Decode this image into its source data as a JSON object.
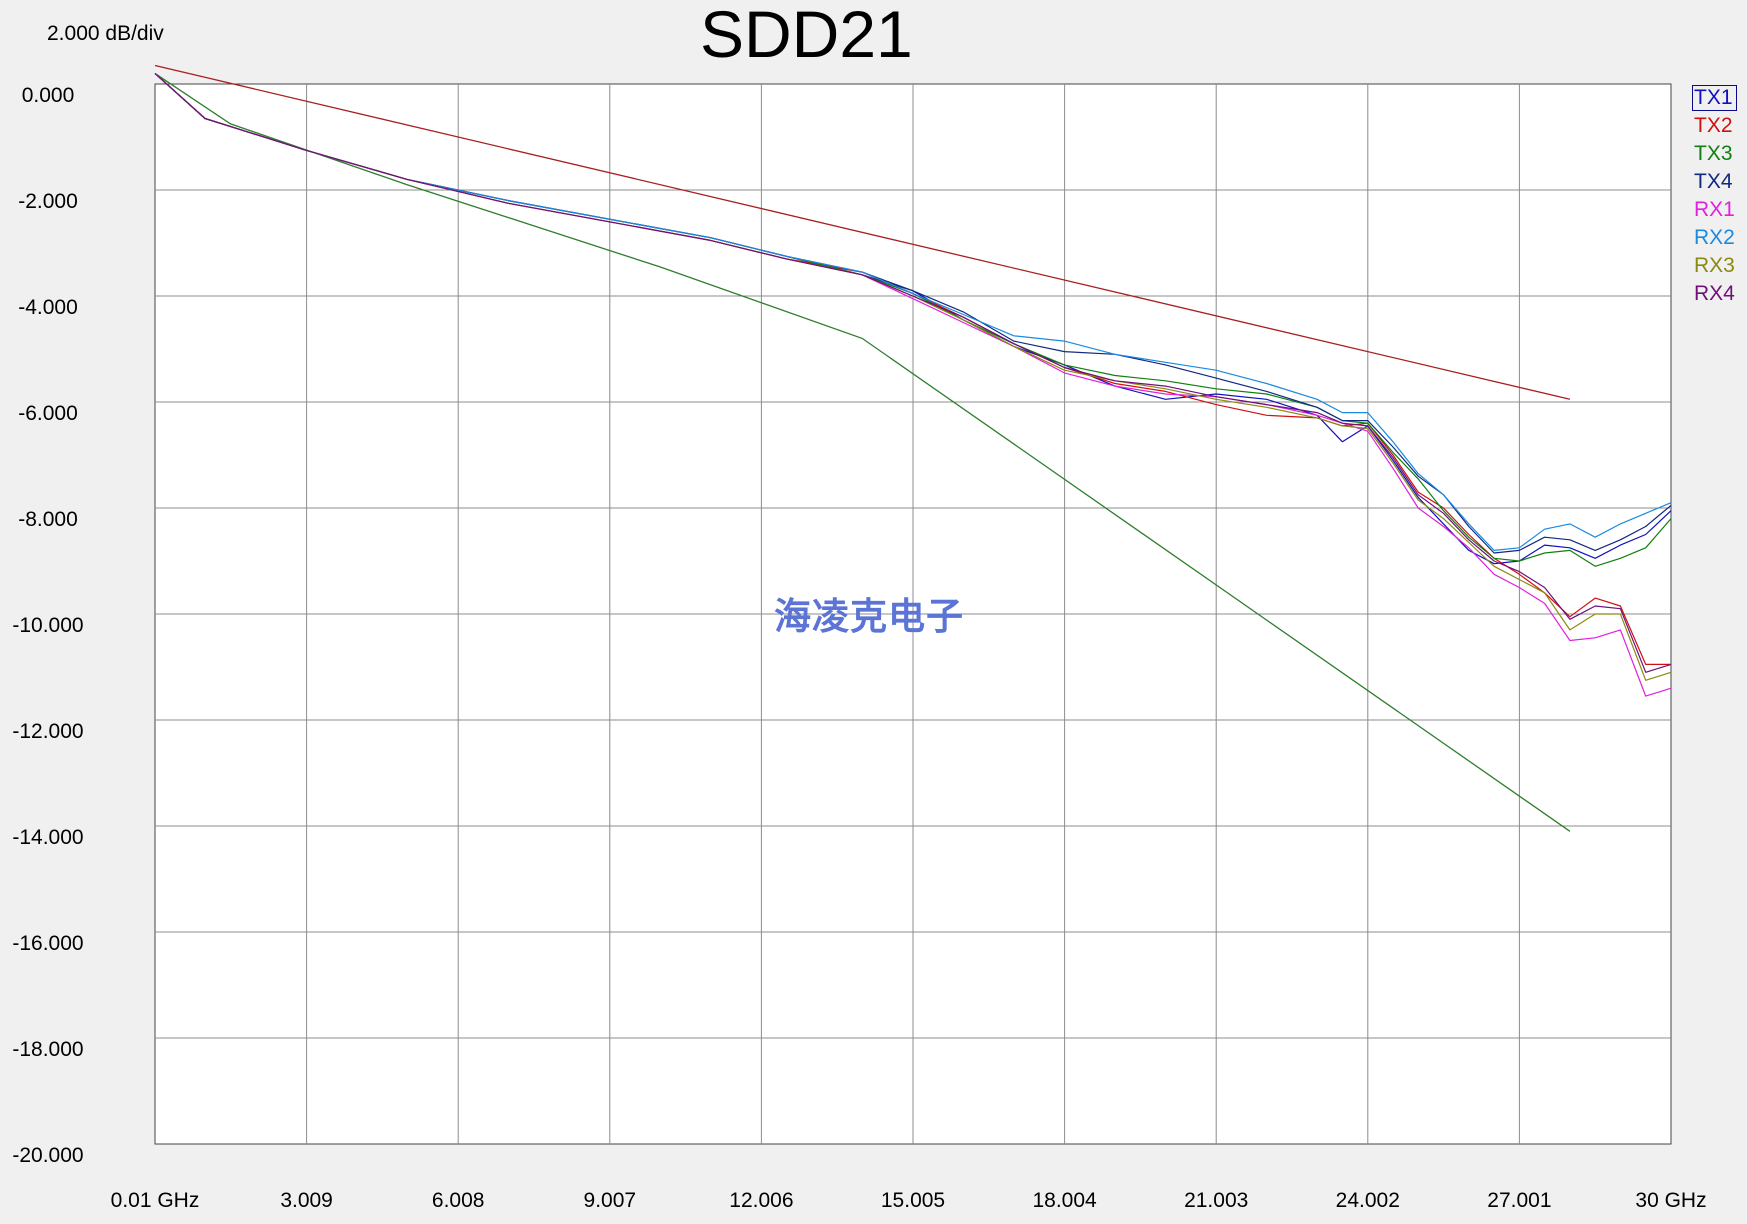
{
  "chart_data": {
    "type": "line",
    "title": "SDD21",
    "scale_label": "2.000 dB/div",
    "x_unit": "GHz",
    "xlim": [
      0.01,
      30
    ],
    "ylim": [
      -20,
      0
    ],
    "x_tick_values": [
      0.01,
      3.009,
      6.008,
      9.007,
      12.006,
      15.005,
      18.004,
      21.003,
      24.002,
      27.001,
      30
    ],
    "x_tick_labels": [
      "0.01 GHz",
      "3.009",
      "6.008",
      "9.007",
      "12.006",
      "15.005",
      "18.004",
      "21.003",
      "24.002",
      "27.001",
      "30 GHz"
    ],
    "y_tick_values": [
      0,
      -2,
      -4,
      -6,
      -8,
      -10,
      -12,
      -14,
      -16,
      -18,
      -20
    ],
    "y_tick_labels": [
      "0.000",
      "-2.000",
      "-4.000",
      "-6.000",
      "-8.000",
      "-10.000",
      "-12.000",
      "-14.000",
      "-16.000",
      "-18.000",
      "-20.000"
    ],
    "grid": true,
    "legend_position": "right",
    "series": [
      {
        "name": "TX1",
        "color": "#1010c0",
        "x": [
          0.01,
          1,
          3,
          5,
          7,
          9,
          11,
          12.5,
          14,
          15,
          16,
          17,
          18,
          19,
          20,
          21,
          22,
          23,
          23.5,
          24,
          24.5,
          25,
          25.5,
          26,
          26.5,
          27,
          27.5,
          28,
          28.5,
          29,
          29.5,
          30
        ],
        "y": [
          0.2,
          -0.65,
          -1.25,
          -1.8,
          -2.2,
          -2.55,
          -2.9,
          -3.25,
          -3.6,
          -3.9,
          -4.45,
          -4.95,
          -5.3,
          -5.7,
          -5.95,
          -5.85,
          -5.95,
          -6.25,
          -6.75,
          -6.45,
          -7.1,
          -7.8,
          -8.3,
          -8.8,
          -9.05,
          -9.0,
          -8.7,
          -8.75,
          -8.95,
          -8.7,
          -8.5,
          -8.05
        ]
      },
      {
        "name": "TX2",
        "color": "#d01010",
        "x": [
          0.01,
          1,
          3,
          5,
          7,
          9,
          11,
          12.5,
          14,
          15,
          16,
          17,
          18,
          19,
          20,
          21,
          22,
          23,
          23.5,
          24,
          24.5,
          25,
          25.5,
          26,
          26.5,
          27,
          27.5,
          28,
          28.5,
          29,
          29.5,
          30
        ],
        "y": [
          0.2,
          -0.65,
          -1.25,
          -1.8,
          -2.25,
          -2.6,
          -2.95,
          -3.3,
          -3.55,
          -3.95,
          -4.4,
          -4.9,
          -5.35,
          -5.65,
          -5.8,
          -6.05,
          -6.25,
          -6.3,
          -6.45,
          -6.4,
          -7.0,
          -7.7,
          -8.0,
          -8.5,
          -8.95,
          -9.25,
          -9.6,
          -10.05,
          -9.7,
          -9.85,
          -10.95,
          -10.95
        ]
      },
      {
        "name": "TX3",
        "color": "#108010",
        "x": [
          0.01,
          1,
          3,
          5,
          7,
          9,
          11,
          12.5,
          14,
          15,
          16,
          17,
          18,
          19,
          20,
          21,
          22,
          23,
          23.5,
          24,
          24.5,
          25,
          25.5,
          26,
          26.5,
          27,
          27.5,
          28,
          28.5,
          29,
          29.5,
          30
        ],
        "y": [
          0.2,
          -0.65,
          -1.25,
          -1.8,
          -2.2,
          -2.55,
          -2.9,
          -3.25,
          -3.6,
          -3.95,
          -4.45,
          -4.9,
          -5.3,
          -5.5,
          -5.6,
          -5.75,
          -5.85,
          -6.1,
          -6.35,
          -6.4,
          -6.95,
          -7.45,
          -8.05,
          -8.55,
          -8.95,
          -9.0,
          -8.85,
          -8.8,
          -9.1,
          -8.95,
          -8.75,
          -8.2
        ]
      },
      {
        "name": "TX4",
        "color": "#102a80",
        "x": [
          0.01,
          1,
          3,
          5,
          7,
          9,
          11,
          12.5,
          14,
          15,
          16,
          17,
          18,
          19,
          20,
          21,
          22,
          23,
          23.5,
          24,
          24.5,
          25,
          25.5,
          26,
          26.5,
          27,
          27.5,
          28,
          28.5,
          29,
          29.5,
          30
        ],
        "y": [
          0.2,
          -0.65,
          -1.25,
          -1.8,
          -2.2,
          -2.55,
          -2.9,
          -3.25,
          -3.55,
          -3.9,
          -4.3,
          -4.85,
          -5.05,
          -5.1,
          -5.3,
          -5.55,
          -5.8,
          -6.1,
          -6.35,
          -6.35,
          -6.85,
          -7.4,
          -7.75,
          -8.35,
          -8.85,
          -8.8,
          -8.55,
          -8.6,
          -8.8,
          -8.6,
          -8.35,
          -7.95
        ]
      },
      {
        "name": "RX1",
        "color": "#e020e0",
        "x": [
          0.01,
          1,
          3,
          5,
          7,
          9,
          11,
          12.5,
          14,
          15,
          16,
          17,
          18,
          19,
          20,
          21,
          22,
          23,
          23.5,
          24,
          24.5,
          25,
          25.5,
          26,
          26.5,
          27,
          27.5,
          28,
          28.5,
          29,
          29.5,
          30
        ],
        "y": [
          0.2,
          -0.65,
          -1.25,
          -1.8,
          -2.25,
          -2.6,
          -2.95,
          -3.3,
          -3.6,
          -4.05,
          -4.5,
          -4.95,
          -5.45,
          -5.7,
          -5.85,
          -5.9,
          -6.05,
          -6.25,
          -6.4,
          -6.55,
          -7.25,
          -8.0,
          -8.35,
          -8.75,
          -9.25,
          -9.5,
          -9.8,
          -10.5,
          -10.45,
          -10.3,
          -11.55,
          -11.4
        ]
      },
      {
        "name": "RX2",
        "color": "#1a8ae0",
        "x": [
          0.01,
          1,
          3,
          5,
          7,
          9,
          11,
          12.5,
          14,
          15,
          16,
          17,
          18,
          19,
          20,
          21,
          22,
          23,
          23.5,
          24,
          24.5,
          25,
          25.5,
          26,
          26.5,
          27,
          27.5,
          28,
          28.5,
          29,
          29.5,
          30
        ],
        "y": [
          0.2,
          -0.65,
          -1.25,
          -1.8,
          -2.2,
          -2.55,
          -2.9,
          -3.25,
          -3.55,
          -3.95,
          -4.35,
          -4.75,
          -4.85,
          -5.1,
          -5.25,
          -5.4,
          -5.65,
          -5.95,
          -6.2,
          -6.2,
          -6.75,
          -7.35,
          -7.75,
          -8.3,
          -8.8,
          -8.75,
          -8.4,
          -8.3,
          -8.55,
          -8.3,
          -8.1,
          -7.9
        ]
      },
      {
        "name": "RX3",
        "color": "#8a8a10",
        "x": [
          0.01,
          1,
          3,
          5,
          7,
          9,
          11,
          12.5,
          14,
          15,
          16,
          17,
          18,
          19,
          20,
          21,
          22,
          23,
          23.5,
          24,
          24.5,
          25,
          25.5,
          26,
          26.5,
          27,
          27.5,
          28,
          28.5,
          29,
          29.5,
          30
        ],
        "y": [
          0.2,
          -0.65,
          -1.25,
          -1.8,
          -2.25,
          -2.6,
          -2.95,
          -3.3,
          -3.6,
          -4.0,
          -4.45,
          -4.95,
          -5.4,
          -5.6,
          -5.75,
          -5.95,
          -6.1,
          -6.3,
          -6.45,
          -6.5,
          -7.15,
          -7.85,
          -8.2,
          -8.65,
          -9.1,
          -9.35,
          -9.6,
          -10.3,
          -10.0,
          -10.0,
          -11.25,
          -11.1
        ]
      },
      {
        "name": "RX4",
        "color": "#70107a",
        "x": [
          0.01,
          1,
          3,
          5,
          7,
          9,
          11,
          12.5,
          14,
          15,
          16,
          17,
          18,
          19,
          20,
          21,
          22,
          23,
          23.5,
          24,
          24.5,
          25,
          25.5,
          26,
          26.5,
          27,
          27.5,
          28,
          28.5,
          29,
          29.5,
          30
        ],
        "y": [
          0.2,
          -0.65,
          -1.25,
          -1.8,
          -2.25,
          -2.6,
          -2.95,
          -3.3,
          -3.6,
          -4.0,
          -4.4,
          -4.9,
          -5.35,
          -5.6,
          -5.7,
          -5.9,
          -6.05,
          -6.2,
          -6.4,
          -6.45,
          -7.05,
          -7.75,
          -8.1,
          -8.6,
          -9.0,
          -9.2,
          -9.5,
          -10.1,
          -9.85,
          -9.9,
          -11.1,
          -10.95
        ]
      }
    ],
    "limit_lines": [
      {
        "color": "#a82020",
        "x": [
          0.01,
          28.0
        ],
        "y": [
          0.35,
          -5.95
        ]
      },
      {
        "color": "#2e7d2e",
        "x": [
          0.01,
          1.5,
          5,
          10,
          14,
          28.0
        ],
        "y": [
          0.2,
          -0.75,
          -1.9,
          -3.45,
          -4.8,
          -14.1
        ]
      }
    ]
  },
  "watermark": "海凌克电子"
}
